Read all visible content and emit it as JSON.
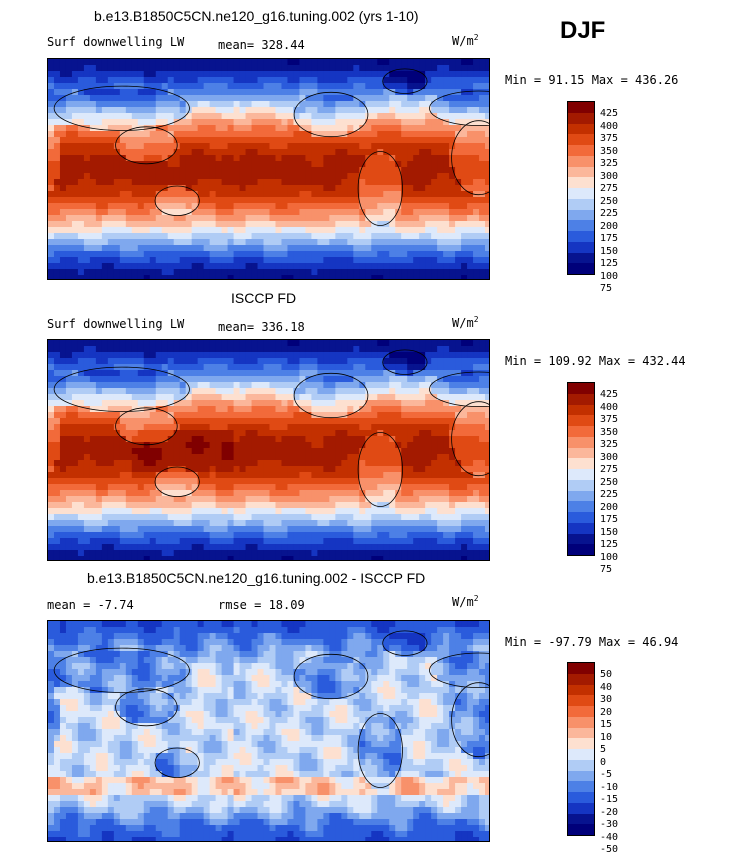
{
  "season": "DJF",
  "panels": [
    {
      "title": "b.e13.B1850C5CN.ne120_g16.tuning.002 (yrs 1-10)",
      "left_label": "Surf downwelling LW",
      "center_label": "mean= 328.44",
      "unit_base": "W/m",
      "unit_exp": "2",
      "minmax": "Min =  91.15 Max = 436.26",
      "levels": [
        "425",
        "400",
        "375",
        "350",
        "325",
        "300",
        "275",
        "250",
        "225",
        "200",
        "175",
        "150",
        "125",
        "100",
        "75"
      ],
      "colors": [
        "#800000",
        "#a31a00",
        "#c33000",
        "#e04a14",
        "#f26a3a",
        "#f8916a",
        "#fbb79b",
        "#fde0d0",
        "#dde9fb",
        "#b0ccf5",
        "#7fa8ee",
        "#4d80e6",
        "#2a5bdc",
        "#1535c2",
        "#07138f",
        "#00007a"
      ],
      "field": "model"
    },
    {
      "title": "ISCCP FD",
      "left_label": "Surf downwelling LW",
      "center_label": "mean= 336.18",
      "unit_base": "W/m",
      "unit_exp": "2",
      "minmax": "Min = 109.92 Max = 432.44",
      "levels": [
        "425",
        "400",
        "375",
        "350",
        "325",
        "300",
        "275",
        "250",
        "225",
        "200",
        "175",
        "150",
        "125",
        "100",
        "75"
      ],
      "colors": [
        "#800000",
        "#a31a00",
        "#c33000",
        "#e04a14",
        "#f26a3a",
        "#f8916a",
        "#fbb79b",
        "#fde0d0",
        "#dde9fb",
        "#b0ccf5",
        "#7fa8ee",
        "#4d80e6",
        "#2a5bdc",
        "#1535c2",
        "#07138f",
        "#00007a"
      ],
      "field": "obs"
    },
    {
      "title": "b.e13.B1850C5CN.ne120_g16.tuning.002 - ISCCP FD",
      "left_label": "mean =   -7.74",
      "center_label": "rmse =   18.09",
      "unit_base": "W/m",
      "unit_exp": "2",
      "minmax": "Min = -97.79 Max =  46.94",
      "levels": [
        "50",
        "40",
        "30",
        "20",
        "15",
        "10",
        "5",
        "0",
        "-5",
        "-10",
        "-15",
        "-20",
        "-30",
        "-40",
        "-50"
      ],
      "colors": [
        "#800000",
        "#a31a00",
        "#c33000",
        "#e04a14",
        "#f26a3a",
        "#f8916a",
        "#fbb79b",
        "#fde0d0",
        "#dde9fb",
        "#b0ccf5",
        "#7fa8ee",
        "#4d80e6",
        "#2a5bdc",
        "#1535c2",
        "#07138f",
        "#00007a"
      ],
      "field": "diff"
    }
  ]
}
